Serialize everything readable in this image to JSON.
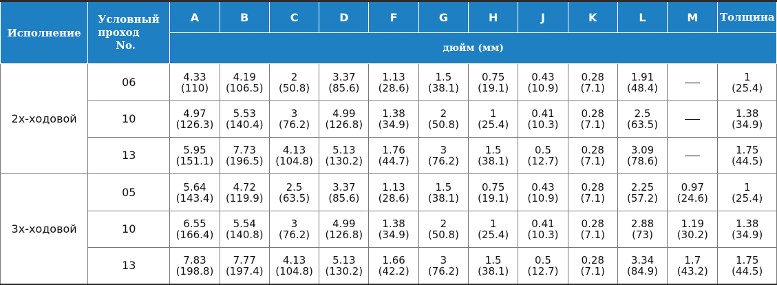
{
  "table": {
    "headers": {
      "execution": "Исполнение",
      "nominal_bore": [
        "Условный",
        "проход",
        "No."
      ],
      "thickness": "Толщина",
      "letters": [
        "A",
        "B",
        "C",
        "D",
        "F",
        "G",
        "H",
        "J",
        "K",
        "L",
        "M"
      ],
      "units": "дюйм (мм)"
    },
    "groups": [
      {
        "name": "2х-ходовой",
        "rows": [
          {
            "size": "06",
            "cells": [
              [
                "4.33",
                "(110)"
              ],
              [
                "4.19",
                "(106.5)"
              ],
              [
                "2",
                "(50.8)"
              ],
              [
                "3.37",
                "(85.6)"
              ],
              [
                "1.13",
                "(28.6)"
              ],
              [
                "1.5",
                "(38.1)"
              ],
              [
                "0.75",
                "(19.1)"
              ],
              [
                "0.43",
                "(10.9)"
              ],
              [
                "0.28",
                "(7.1)"
              ],
              [
                "1.91",
                "(48.4)"
              ],
              [
                "—",
                ""
              ]
            ],
            "thickness": [
              "1",
              "(25.4)"
            ]
          },
          {
            "size": "10",
            "cells": [
              [
                "4.97",
                "(126.3)"
              ],
              [
                "5.53",
                "(140.4)"
              ],
              [
                "3",
                "(76.2)"
              ],
              [
                "4.99",
                "(126.8)"
              ],
              [
                "1.38",
                "(34.9)"
              ],
              [
                "2",
                "(50.8)"
              ],
              [
                "1",
                "(25.4)"
              ],
              [
                "0.41",
                "(10.3)"
              ],
              [
                "0.28",
                "(7.1)"
              ],
              [
                "2.5",
                "(63.5)"
              ],
              [
                "—",
                ""
              ]
            ],
            "thickness": [
              "1.38",
              "(34.9)"
            ]
          },
          {
            "size": "13",
            "cells": [
              [
                "5.95",
                "(151.1)"
              ],
              [
                "7.73",
                "(196.5)"
              ],
              [
                "4.13",
                "(104.8)"
              ],
              [
                "5.13",
                "(130.2)"
              ],
              [
                "1.76",
                "(44.7)"
              ],
              [
                "3",
                "(76.2)"
              ],
              [
                "1.5",
                "(38.1)"
              ],
              [
                "0.5",
                "(12.7)"
              ],
              [
                "0.28",
                "(7.1)"
              ],
              [
                "3.09",
                "(78.6)"
              ],
              [
                "—",
                ""
              ]
            ],
            "thickness": [
              "1.75",
              "(44.5)"
            ]
          }
        ]
      },
      {
        "name": "3х-ходовой",
        "rows": [
          {
            "size": "05",
            "cells": [
              [
                "5.64",
                "(143.4)"
              ],
              [
                "4.72",
                "(119.9)"
              ],
              [
                "2.5",
                "(63.5)"
              ],
              [
                "3.37",
                "(85.6)"
              ],
              [
                "1.13",
                "(28.6)"
              ],
              [
                "1.5",
                "(38.1)"
              ],
              [
                "0.75",
                "(19.1)"
              ],
              [
                "0.43",
                "(10.9)"
              ],
              [
                "0.28",
                "(7.1)"
              ],
              [
                "2.25",
                "(57.2)"
              ],
              [
                "0.97",
                "(24.6)"
              ]
            ],
            "thickness": [
              "1",
              "(25.4)"
            ]
          },
          {
            "size": "10",
            "cells": [
              [
                "6.55",
                "(166.4)"
              ],
              [
                "5.54",
                "(140.8)"
              ],
              [
                "3",
                "(76.2)"
              ],
              [
                "4.99",
                "(126.8)"
              ],
              [
                "1.38",
                "(34.9)"
              ],
              [
                "2",
                "(50.8)"
              ],
              [
                "1",
                "(25.4)"
              ],
              [
                "0.41",
                "(10.3)"
              ],
              [
                "0.28",
                "(7.1)"
              ],
              [
                "2.88",
                "(73)"
              ],
              [
                "1.19",
                "(30.2)"
              ]
            ],
            "thickness": [
              "1.38",
              "(34.9)"
            ]
          },
          {
            "size": "13",
            "cells": [
              [
                "7.83",
                "(198.8)"
              ],
              [
                "7.77",
                "(197.4)"
              ],
              [
                "4.13",
                "(104.8)"
              ],
              [
                "5.13",
                "(130.2)"
              ],
              [
                "1.66",
                "(42.2)"
              ],
              [
                "3",
                "(76.2)"
              ],
              [
                "1.5",
                "(38.1)"
              ],
              [
                "0.5",
                "(12.7)"
              ],
              [
                "0.28",
                "(7.1)"
              ],
              [
                "3.34",
                "(84.9)"
              ],
              [
                "1.7",
                "(43.2)"
              ]
            ],
            "thickness": [
              "1.75",
              "(44.5)"
            ]
          }
        ]
      }
    ]
  },
  "colors": {
    "header_bg": "#1f7fc3",
    "header_text": "#ffffff",
    "border": "#7a7a7a"
  }
}
